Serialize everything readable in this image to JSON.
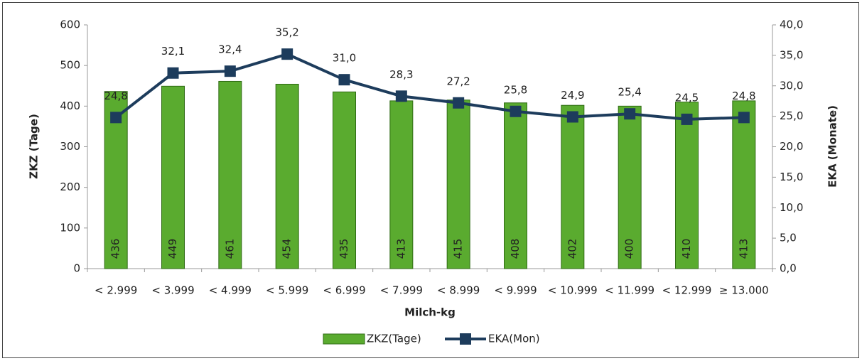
{
  "chart_data": {
    "type": "combo",
    "x_label": "Milch-kg",
    "y_label": "ZKZ (Tage)",
    "y2_label": "EKA (Monate)",
    "categories": [
      "< 2.999",
      "< 3.999",
      "< 4.999",
      "< 5.999",
      "< 6.999",
      "< 7.999",
      "< 8.999",
      "< 9.999",
      "< 10.999",
      "< 11.999",
      "< 12.999",
      "≥ 13.000"
    ],
    "series": [
      {
        "name": "ZKZ(Tage)",
        "type": "bar",
        "color": "#5aab2f",
        "edge": "#2f6b14",
        "values": [
          436,
          449,
          461,
          454,
          435,
          413,
          415,
          408,
          402,
          400,
          410,
          413
        ]
      },
      {
        "name": "EKA(Mon)",
        "type": "line",
        "axis": "y2",
        "color": "#1d3c5c",
        "values": [
          24.8,
          32.1,
          32.4,
          35.2,
          31.0,
          28.3,
          27.2,
          25.8,
          24.9,
          25.4,
          24.5,
          24.8
        ],
        "value_labels": [
          "24,8",
          "32,1",
          "32,4",
          "35,2",
          "31,0",
          "28,3",
          "27,2",
          "25,8",
          "24,9",
          "25,4",
          "24,5",
          "24,8"
        ]
      }
    ],
    "ylim": [
      0,
      600
    ],
    "yticks": [
      0,
      100,
      200,
      300,
      400,
      500,
      600
    ],
    "y2lim": [
      0,
      40
    ],
    "y2ticks": [
      {
        "value": 0,
        "label": "0,0"
      },
      {
        "value": 5,
        "label": "5,0"
      },
      {
        "value": 10,
        "label": "10,0"
      },
      {
        "value": 15,
        "label": "15,0"
      },
      {
        "value": 20,
        "label": "20,0"
      },
      {
        "value": 25,
        "label": "25,0"
      },
      {
        "value": 30,
        "label": "30,0"
      },
      {
        "value": 35,
        "label": "35,0"
      },
      {
        "value": 40,
        "label": "40,0"
      }
    ],
    "grid": false,
    "legend": "bottom"
  }
}
